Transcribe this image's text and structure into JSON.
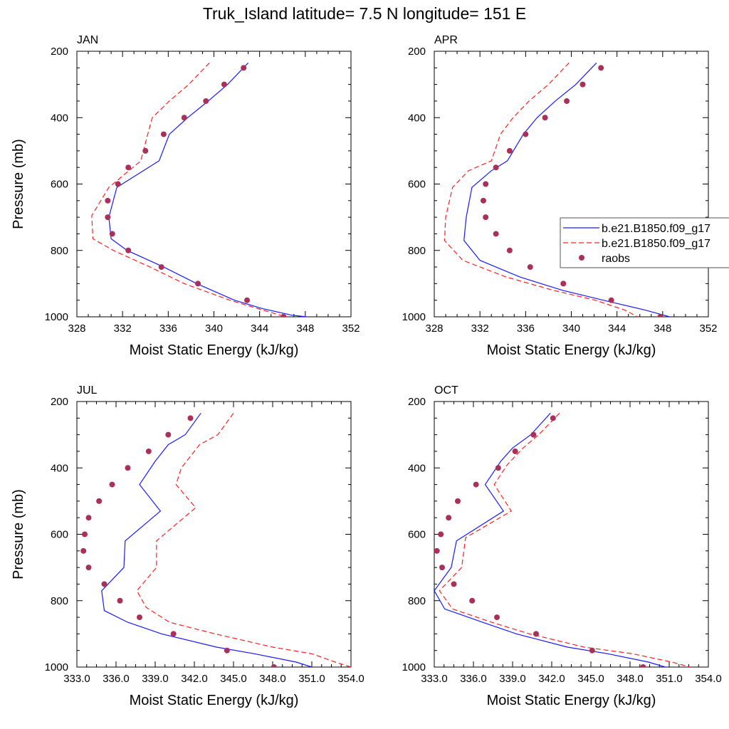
{
  "page_title": "Truk_Island  latitude= 7.5 N longitude= 151 E",
  "colors": {
    "model1": "#1a1aff",
    "model2": "#ff2020",
    "obs": "#a8305a"
  },
  "legend": {
    "items": [
      {
        "label": "b.e21.B1850.f09_g17",
        "style": "solid",
        "color": "#1a1aff"
      },
      {
        "label": "b.e21.B1850.f09_g17",
        "style": "dashed",
        "color": "#ff2020"
      },
      {
        "label": "raobs",
        "style": "marker",
        "color": "#a8305a"
      }
    ]
  },
  "chart_data": [
    {
      "type": "line",
      "panel_label": "JAN",
      "xlabel": "Moist Static Energy (kJ/kg)",
      "ylabel": "Pressure (mb)",
      "xlim": [
        328,
        352
      ],
      "ylim": [
        200,
        1000
      ],
      "y_reversed": true,
      "xticks": [
        328,
        332,
        336,
        340,
        344,
        348,
        352
      ],
      "xtick_labels": [
        "328",
        "332",
        "336",
        "340",
        "344",
        "348",
        "352"
      ],
      "yticks": [
        200,
        400,
        600,
        800,
        1000
      ],
      "ytick_labels": [
        "200",
        "400",
        "600",
        "800",
        "1000"
      ],
      "series": [
        {
          "legend_index": 0,
          "style": "solid",
          "x": [
            343.0,
            341.2,
            339.5,
            337.7,
            336.1,
            335.2,
            331.5,
            330.8,
            331.0,
            332.4,
            335.6,
            338.5,
            341.8,
            344.2,
            346.8,
            348.1
          ],
          "y": [
            235,
            300,
            350,
            400,
            450,
            530,
            610,
            700,
            765,
            800,
            850,
            900,
            950,
            975,
            995,
            1000
          ]
        },
        {
          "legend_index": 1,
          "style": "dashed",
          "x": [
            339.6,
            337.8,
            336.1,
            334.6,
            334.2,
            333.6,
            330.8,
            329.3,
            329.4,
            331.2,
            334.4,
            337.4,
            341.4,
            343.8,
            345.8,
            346.4
          ],
          "y": [
            235,
            300,
            350,
            400,
            450,
            530,
            610,
            695,
            765,
            800,
            850,
            900,
            950,
            975,
            995,
            1000
          ]
        },
        {
          "legend_index": 2,
          "style": "marker",
          "x": [
            342.6,
            340.9,
            339.3,
            337.4,
            335.6,
            334.0,
            332.5,
            331.6,
            330.7,
            330.7,
            331.1,
            332.5,
            335.4,
            338.6,
            342.9,
            346.1
          ],
          "y": [
            250,
            300,
            350,
            400,
            450,
            500,
            550,
            600,
            650,
            700,
            750,
            800,
            850,
            900,
            950,
            1000
          ]
        }
      ]
    },
    {
      "type": "line",
      "panel_label": "APR",
      "xlabel": "Moist Static Energy (kJ/kg)",
      "ylabel": "",
      "xlim": [
        328,
        352
      ],
      "ylim": [
        200,
        1000
      ],
      "y_reversed": true,
      "xticks": [
        328,
        332,
        336,
        340,
        344,
        348,
        352
      ],
      "xtick_labels": [
        "328",
        "332",
        "336",
        "340",
        "344",
        "348",
        "352"
      ],
      "yticks": [
        200,
        400,
        600,
        800,
        1000
      ],
      "ytick_labels": [
        "200",
        "400",
        "600",
        "800",
        "1000"
      ],
      "series": [
        {
          "legend_index": 0,
          "style": "solid",
          "x": [
            342.2,
            340.4,
            338.6,
            337.0,
            335.8,
            334.4,
            333.0,
            331.3,
            330.8,
            330.6,
            332.0,
            335.5,
            339.2,
            342.8,
            346.5,
            348.6
          ],
          "y": [
            235,
            300,
            350,
            400,
            450,
            530,
            560,
            610,
            700,
            770,
            830,
            880,
            920,
            950,
            980,
            1000
          ]
        },
        {
          "legend_index": 1,
          "style": "dashed",
          "x": [
            339.8,
            338.0,
            336.3,
            334.9,
            333.8,
            333.0,
            331.0,
            329.6,
            329.0,
            328.9,
            330.5,
            334.3,
            338.4,
            342.1,
            344.7,
            345.8
          ],
          "y": [
            235,
            300,
            350,
            400,
            450,
            530,
            560,
            610,
            700,
            770,
            830,
            880,
            920,
            950,
            980,
            1000
          ]
        },
        {
          "legend_index": 2,
          "style": "marker",
          "x": [
            342.6,
            341.0,
            339.6,
            337.7,
            336.0,
            334.6,
            333.4,
            332.5,
            332.3,
            332.5,
            333.4,
            334.6,
            336.4,
            339.3,
            343.5,
            347.8
          ],
          "y": [
            250,
            300,
            350,
            400,
            450,
            500,
            550,
            600,
            650,
            700,
            750,
            800,
            850,
            900,
            950,
            1000
          ]
        }
      ]
    },
    {
      "type": "line",
      "panel_label": "JUL",
      "xlabel": "Moist Static Energy (kJ/kg)",
      "ylabel": "Pressure (mb)",
      "xlim": [
        333,
        354
      ],
      "ylim": [
        200,
        1000
      ],
      "y_reversed": true,
      "xticks": [
        333,
        336,
        339,
        342,
        345,
        348,
        351,
        354
      ],
      "xtick_labels": [
        "333.0",
        "336.0",
        "339.0",
        "342.0",
        "345.0",
        "348.0",
        "351.0",
        "354.0"
      ],
      "yticks": [
        200,
        400,
        600,
        800,
        1000
      ],
      "ytick_labels": [
        "200",
        "400",
        "600",
        "800",
        "1000"
      ],
      "series": [
        {
          "legend_index": 0,
          "style": "solid",
          "x": [
            342.5,
            341.3,
            340.0,
            339.0,
            337.8,
            339.4,
            336.7,
            336.6,
            334.9,
            335.1,
            336.9,
            339.5,
            343.7,
            346.6,
            349.8,
            351.0
          ],
          "y": [
            235,
            300,
            330,
            380,
            450,
            530,
            620,
            700,
            770,
            830,
            865,
            900,
            940,
            960,
            985,
            1000
          ]
        },
        {
          "legend_index": 1,
          "style": "dashed",
          "x": [
            345.0,
            343.8,
            342.4,
            341.0,
            340.6,
            342.1,
            339.1,
            339.1,
            337.6,
            338.3,
            340.1,
            343.6,
            348.0,
            351.0,
            352.8,
            354.0
          ],
          "y": [
            235,
            300,
            330,
            400,
            450,
            520,
            620,
            700,
            770,
            820,
            865,
            900,
            940,
            960,
            985,
            1000
          ]
        },
        {
          "legend_index": 2,
          "style": "marker",
          "x": [
            341.7,
            340.0,
            338.5,
            336.9,
            335.7,
            334.7,
            333.9,
            333.6,
            333.5,
            333.9,
            335.1,
            336.3,
            337.8,
            340.4,
            344.5,
            348.1
          ],
          "y": [
            250,
            300,
            350,
            400,
            450,
            500,
            550,
            600,
            650,
            700,
            750,
            800,
            850,
            900,
            950,
            1000
          ]
        }
      ]
    },
    {
      "type": "line",
      "panel_label": "OCT",
      "xlabel": "Moist Static Energy (kJ/kg)",
      "ylabel": "",
      "xlim": [
        333,
        354
      ],
      "ylim": [
        200,
        1000
      ],
      "y_reversed": true,
      "xticks": [
        333,
        336,
        339,
        342,
        345,
        348,
        351,
        354
      ],
      "xtick_labels": [
        "333.0",
        "336.0",
        "339.0",
        "342.0",
        "345.0",
        "348.0",
        "351.0",
        "354.0"
      ],
      "yticks": [
        200,
        400,
        600,
        800,
        1000
      ],
      "ytick_labels": [
        "200",
        "400",
        "600",
        "800",
        "1000"
      ],
      "series": [
        {
          "legend_index": 0,
          "style": "solid",
          "x": [
            341.9,
            340.4,
            339.0,
            338.1,
            336.9,
            338.3,
            334.7,
            334.3,
            333.0,
            333.8,
            336.7,
            339.3,
            343.2,
            346.3,
            349.4,
            350.7
          ],
          "y": [
            235,
            300,
            340,
            380,
            450,
            530,
            620,
            700,
            770,
            825,
            865,
            900,
            940,
            960,
            985,
            1000
          ]
        },
        {
          "legend_index": 1,
          "style": "dashed",
          "x": [
            342.6,
            341.0,
            339.8,
            338.6,
            337.6,
            338.9,
            335.4,
            335.1,
            333.4,
            334.4,
            337.4,
            340.3,
            344.5,
            348.2,
            351.2,
            352.6
          ],
          "y": [
            235,
            300,
            340,
            390,
            450,
            530,
            610,
            700,
            770,
            825,
            865,
            900,
            940,
            960,
            985,
            1000
          ]
        },
        {
          "legend_index": 2,
          "style": "marker",
          "x": [
            342.1,
            340.6,
            339.2,
            337.9,
            336.2,
            334.8,
            334.1,
            333.5,
            333.2,
            333.6,
            334.5,
            335.9,
            337.8,
            340.8,
            345.1,
            349.0
          ],
          "y": [
            250,
            300,
            350,
            400,
            450,
            500,
            550,
            600,
            650,
            700,
            750,
            800,
            850,
            900,
            950,
            1000
          ]
        }
      ]
    }
  ]
}
